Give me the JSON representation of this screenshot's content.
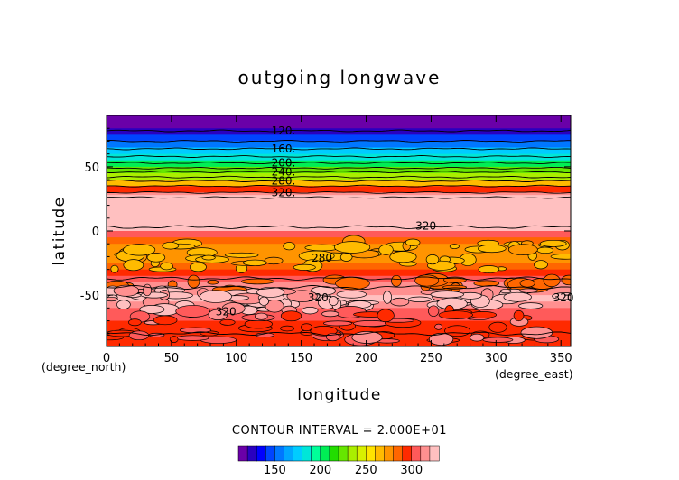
{
  "chart_data": {
    "type": "heatmap",
    "title": "outgoing longwave",
    "xlabel": "longitude",
    "ylabel": "latitude",
    "x_unit_label": "(degree_east)",
    "y_unit_label": "(degree_north)",
    "xlim": [
      0,
      357.5
    ],
    "ylim": [
      -90,
      90
    ],
    "xticks": [
      0,
      50,
      100,
      150,
      200,
      250,
      300,
      350
    ],
    "yticks": [
      -50,
      0,
      50
    ],
    "contour_interval_text": "CONTOUR INTERVAL = 2.000E+01",
    "contour_labels": [
      {
        "text": "120.",
        "lon": 127,
        "lat": 78
      },
      {
        "text": "160.",
        "lon": 127,
        "lat": 64
      },
      {
        "text": "200.",
        "lon": 127,
        "lat": 53
      },
      {
        "text": "240.",
        "lon": 127,
        "lat": 46
      },
      {
        "text": "280.",
        "lon": 127,
        "lat": 39
      },
      {
        "text": "320.",
        "lon": 127,
        "lat": 30
      },
      {
        "text": "320",
        "lon": 238,
        "lat": 4
      },
      {
        "text": "280",
        "lon": 158,
        "lat": -21
      },
      {
        "text": "320",
        "lon": 155,
        "lat": -52
      },
      {
        "text": "320",
        "lon": 344,
        "lat": -52
      },
      {
        "text": "320",
        "lon": 84,
        "lat": -63
      }
    ],
    "latitude_profile": {
      "lat": [
        90,
        80,
        75,
        70,
        65,
        60,
        55,
        50,
        45,
        40,
        35,
        30,
        28,
        25,
        5,
        0,
        -5,
        -10,
        -15,
        -20,
        -25,
        -30,
        -35,
        -40,
        -45,
        -50,
        -55,
        -60,
        -65,
        -70,
        -75,
        -80,
        -85,
        -90
      ],
      "olr": [
        118,
        120,
        135,
        150,
        163,
        178,
        196,
        212,
        228,
        248,
        272,
        310,
        325,
        335,
        335,
        310,
        290,
        276,
        270,
        275,
        282,
        290,
        298,
        306,
        314,
        322,
        318,
        310,
        304,
        300,
        296,
        294,
        296,
        298
      ]
    },
    "colorbar": {
      "levels": [
        110,
        120,
        130,
        140,
        150,
        160,
        170,
        180,
        190,
        200,
        210,
        220,
        230,
        240,
        250,
        260,
        270,
        280,
        290,
        300,
        310,
        320
      ],
      "colors": [
        "#6a00a8",
        "#2a00c0",
        "#0000ff",
        "#0044ff",
        "#0077ff",
        "#00a6ff",
        "#00ccff",
        "#00e6d8",
        "#00ff99",
        "#00ee55",
        "#22dd00",
        "#66e600",
        "#aaee00",
        "#d8f000",
        "#ffe400",
        "#ffbb00",
        "#ff9400",
        "#ff6600",
        "#ff2a00",
        "#ff5a5a",
        "#ff9090",
        "#ffc0c0"
      ],
      "tick_labels": [
        "150",
        "200",
        "250",
        "300"
      ],
      "tick_values": [
        150,
        200,
        250,
        300
      ]
    }
  }
}
